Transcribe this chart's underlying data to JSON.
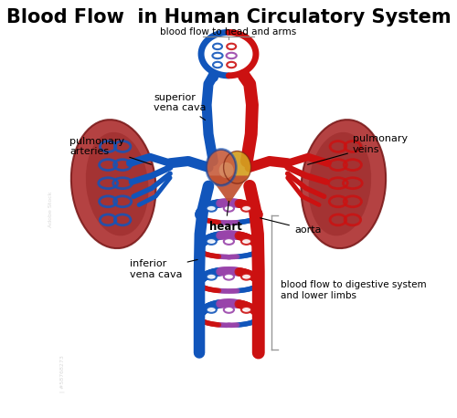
{
  "title": "Blood Flow  in Human Circulatory System",
  "title_fontsize": 15,
  "title_fontweight": "bold",
  "subtitle_top": "blood flow to head and arms",
  "subtitle_bottom": "blood flow to digestive system\nand lower limbs",
  "label_superior_vena_cava": "superior\nvena cava",
  "label_pulmonary_arteries": "pulmonary\narteries",
  "label_pulmonary_veins": "pulmonary\nveins",
  "label_inferior_vena_cava": "inferior\nvena cava",
  "label_heart": "heart",
  "label_aorta": "aorta",
  "bg_color": "#ffffff",
  "blue_color": "#1155bb",
  "red_color": "#cc1111",
  "purple_color": "#9944aa",
  "lung_dark": "#9b2020",
  "lung_mid": "#b83030",
  "heart_orange": "#d4750a",
  "heart_pink": "#d08060",
  "fig_width": 5.0,
  "fig_height": 4.58,
  "dpi": 100
}
